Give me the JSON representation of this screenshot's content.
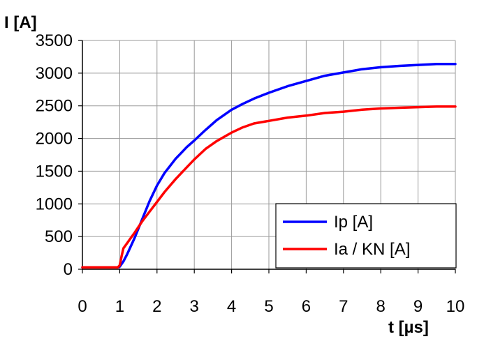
{
  "chart_data": {
    "type": "line",
    "title": "",
    "xlabel": "t  [µs]",
    "ylabel": "I  [A]",
    "xlim": [
      0,
      10
    ],
    "ylim": [
      0,
      3500
    ],
    "xticks": [
      0,
      1,
      2,
      3,
      4,
      5,
      6,
      7,
      8,
      9,
      10
    ],
    "yticks": [
      0,
      500,
      1000,
      1500,
      2000,
      2500,
      3000,
      3500
    ],
    "grid": true,
    "legend_position": "bottom-right",
    "series": [
      {
        "name": "Ip  [A]",
        "color": "#0000ff",
        "x": [
          0,
          0.95,
          1.0,
          1.1,
          1.2,
          1.4,
          1.6,
          1.8,
          2.0,
          2.2,
          2.5,
          2.8,
          3.0,
          3.3,
          3.6,
          4.0,
          4.3,
          4.6,
          5.0,
          5.5,
          6.0,
          6.5,
          7.0,
          7.5,
          8.0,
          8.5,
          9.0,
          9.5,
          10.0
        ],
        "y": [
          30,
          30,
          40,
          120,
          230,
          480,
          760,
          1040,
          1280,
          1470,
          1690,
          1870,
          1970,
          2130,
          2280,
          2440,
          2530,
          2610,
          2700,
          2800,
          2880,
          2960,
          3010,
          3060,
          3090,
          3110,
          3125,
          3140,
          3140
        ]
      },
      {
        "name": "Ia / KN [A]",
        "color": "#ff0000",
        "x": [
          0,
          0.95,
          1.0,
          1.05,
          1.1,
          1.2,
          1.3,
          1.4,
          1.6,
          1.8,
          2.0,
          2.2,
          2.5,
          2.8,
          3.0,
          3.3,
          3.6,
          4.0,
          4.3,
          4.6,
          5.0,
          5.5,
          6.0,
          6.5,
          7.0,
          7.5,
          8.0,
          8.5,
          9.0,
          9.5,
          10.0
        ],
        "y": [
          30,
          30,
          60,
          200,
          320,
          400,
          480,
          560,
          730,
          880,
          1030,
          1180,
          1380,
          1560,
          1680,
          1840,
          1960,
          2090,
          2170,
          2230,
          2270,
          2320,
          2350,
          2390,
          2410,
          2440,
          2460,
          2470,
          2480,
          2490,
          2490
        ]
      }
    ]
  }
}
